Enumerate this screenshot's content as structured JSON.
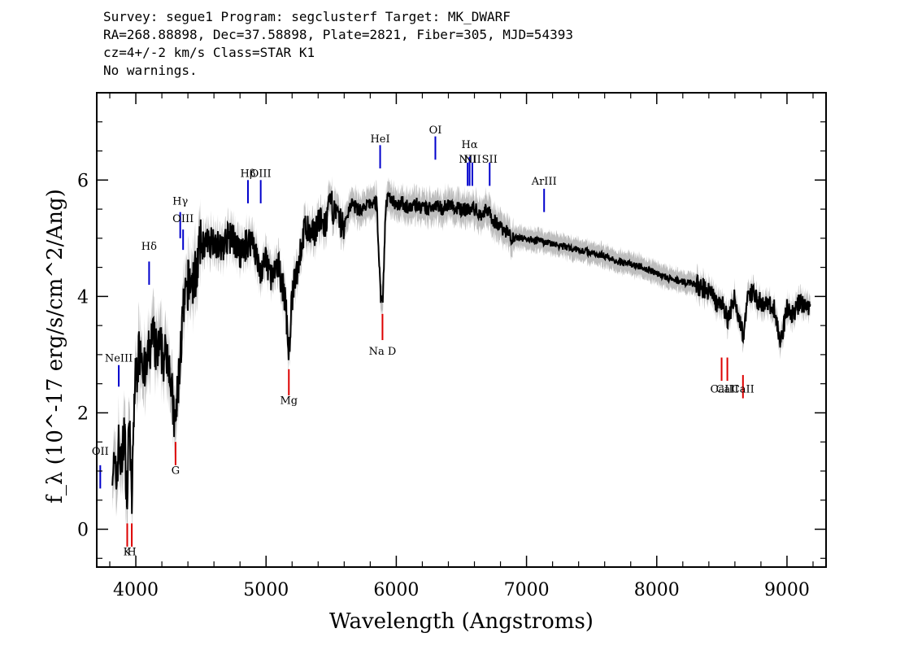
{
  "header": {
    "line1": "Survey: segue1 Program: segclusterf Target: MK_DWARF",
    "line2": "RA=268.88898, Dec=37.58898, Plate=2821, Fiber=305, MJD=54393",
    "line3": "cz=4+/-2 km/s Class=STAR K1",
    "line4": "No warnings."
  },
  "chart_data": {
    "type": "line",
    "xlabel": "Wavelength (Angstroms)",
    "ylabel": "f_λ (10^-17 erg/s/cm^2/Ang)",
    "xlim": [
      3700,
      9300
    ],
    "ylim": [
      -0.65,
      7.5
    ],
    "x_ticks": [
      4000,
      5000,
      6000,
      7000,
      8000,
      9000
    ],
    "y_ticks": [
      0,
      2,
      4,
      6
    ],
    "x_tick_labels": [
      "4000",
      "5000",
      "6000",
      "7000",
      "8000",
      "9000"
    ],
    "y_tick_labels": [
      "0",
      "2",
      "4",
      "6"
    ],
    "grid": false,
    "colors": {
      "spectrum": "#000000",
      "error_band": "#bdbdbd",
      "emission": "#0000cc",
      "absorption": "#dd0000"
    },
    "series": [
      {
        "values": [
          [
            3820,
            1.2
          ],
          [
            3850,
            0.8
          ],
          [
            3870,
            1.5
          ],
          [
            3890,
            1.0
          ],
          [
            3910,
            1.8
          ],
          [
            3935,
            0.4
          ],
          [
            3950,
            2.2
          ],
          [
            3968,
            0.3
          ],
          [
            3990,
            2.4
          ],
          [
            4010,
            2.8
          ],
          [
            4040,
            3.2
          ],
          [
            4070,
            2.6
          ],
          [
            4100,
            3.0
          ],
          [
            4130,
            3.3
          ],
          [
            4160,
            3.0
          ],
          [
            4190,
            3.1
          ],
          [
            4220,
            2.9
          ],
          [
            4250,
            3.1
          ],
          [
            4270,
            2.5
          ],
          [
            4300,
            1.7
          ],
          [
            4330,
            2.6
          ],
          [
            4360,
            3.6
          ],
          [
            4400,
            4.2
          ],
          [
            4450,
            4.3
          ],
          [
            4500,
            4.9
          ],
          [
            4550,
            4.9
          ],
          [
            4600,
            5.0
          ],
          [
            4650,
            4.8
          ],
          [
            4700,
            5.0
          ],
          [
            4750,
            5.0
          ],
          [
            4800,
            4.7
          ],
          [
            4850,
            4.9
          ],
          [
            4900,
            5.0
          ],
          [
            4950,
            4.4
          ],
          [
            5000,
            4.6
          ],
          [
            5050,
            4.3
          ],
          [
            5100,
            4.5
          ],
          [
            5150,
            3.9
          ],
          [
            5175,
            3.0
          ],
          [
            5200,
            4.0
          ],
          [
            5250,
            4.6
          ],
          [
            5300,
            5.2
          ],
          [
            5350,
            5.0
          ],
          [
            5400,
            5.3
          ],
          [
            5450,
            5.2
          ],
          [
            5500,
            5.6
          ],
          [
            5550,
            5.3
          ],
          [
            5600,
            5.2
          ],
          [
            5650,
            5.6
          ],
          [
            5700,
            5.5
          ],
          [
            5750,
            5.5
          ],
          [
            5800,
            5.6
          ],
          [
            5850,
            5.6
          ],
          [
            5880,
            4.0
          ],
          [
            5895,
            3.9
          ],
          [
            5920,
            5.6
          ],
          [
            5950,
            5.7
          ],
          [
            6000,
            5.6
          ],
          [
            6050,
            5.6
          ],
          [
            6100,
            5.5
          ],
          [
            6150,
            5.6
          ],
          [
            6200,
            5.5
          ],
          [
            6250,
            5.5
          ],
          [
            6300,
            5.6
          ],
          [
            6350,
            5.5
          ],
          [
            6400,
            5.6
          ],
          [
            6450,
            5.5
          ],
          [
            6500,
            5.5
          ],
          [
            6550,
            5.5
          ],
          [
            6600,
            5.5
          ],
          [
            6650,
            5.4
          ],
          [
            6700,
            5.5
          ],
          [
            6750,
            5.3
          ],
          [
            6800,
            5.2
          ],
          [
            6850,
            5.1
          ],
          [
            6900,
            5.0
          ],
          [
            7000,
            5.0
          ],
          [
            7100,
            4.95
          ],
          [
            7200,
            4.9
          ],
          [
            7300,
            4.85
          ],
          [
            7400,
            4.8
          ],
          [
            7500,
            4.75
          ],
          [
            7600,
            4.7
          ],
          [
            7700,
            4.6
          ],
          [
            7800,
            4.55
          ],
          [
            7900,
            4.5
          ],
          [
            8000,
            4.4
          ],
          [
            8100,
            4.3
          ],
          [
            8200,
            4.25
          ],
          [
            8300,
            4.2
          ],
          [
            8400,
            4.1
          ],
          [
            8450,
            3.9
          ],
          [
            8500,
            3.9
          ],
          [
            8545,
            3.6
          ],
          [
            8600,
            4.0
          ],
          [
            8662,
            3.3
          ],
          [
            8700,
            4.1
          ],
          [
            8800,
            3.9
          ],
          [
            8900,
            3.8
          ],
          [
            8950,
            3.2
          ],
          [
            9000,
            3.8
          ],
          [
            9050,
            3.7
          ],
          [
            9100,
            3.9
          ],
          [
            9150,
            3.8
          ],
          [
            9180,
            3.8
          ]
        ]
      }
    ],
    "emission_lines": [
      {
        "label": "OII",
        "x": 3727,
        "label_y": 1.28,
        "y_bot": 0.7,
        "y_top": 1.1
      },
      {
        "label": "NeIII",
        "x": 3869,
        "label_y": 2.88,
        "y_bot": 2.45,
        "y_top": 2.82
      },
      {
        "label": "Hδ",
        "x": 4102,
        "label_y": 4.8,
        "y_bot": 4.2,
        "y_top": 4.6
      },
      {
        "label": "Hγ",
        "x": 4341,
        "label_y": 5.58,
        "y_bot": 5.0,
        "y_top": 5.45
      },
      {
        "label": "OIII",
        "x": 4363,
        "label_y": 5.28,
        "y_bot": 4.8,
        "y_top": 5.15
      },
      {
        "label": "Hβ",
        "x": 4861,
        "label_y": 6.05,
        "y_bot": 5.6,
        "y_top": 6.0
      },
      {
        "label": "OIII",
        "x": 4959,
        "label_y": 6.05,
        "y_bot": 5.6,
        "y_top": 6.0
      },
      {
        "label": "HeI",
        "x": 5876,
        "label_y": 6.65,
        "y_bot": 6.2,
        "y_top": 6.6
      },
      {
        "label": "OI",
        "x": 6300,
        "label_y": 6.8,
        "y_bot": 6.35,
        "y_top": 6.75
      },
      {
        "label": "NII",
        "x": 6548,
        "label_y": 6.3,
        "y_bot": 5.9,
        "y_top": 6.3
      },
      {
        "label": "Hα",
        "x": 6563,
        "label_y": 6.55,
        "y_bot": 5.9,
        "y_top": 6.4
      },
      {
        "label": "NII",
        "x": 6584,
        "label_y": 6.3,
        "y_bot": 5.9,
        "y_top": 6.3
      },
      {
        "label": "SII",
        "x": 6717,
        "label_y": 6.3,
        "y_bot": 5.9,
        "y_top": 6.3
      },
      {
        "label": "ArIII",
        "x": 7135,
        "label_y": 5.92,
        "y_bot": 5.45,
        "y_top": 5.85
      }
    ],
    "absorption_lines": [
      {
        "label": "K",
        "x": 3934,
        "label_y": -0.45,
        "y_bot": -0.3,
        "y_top": 0.1
      },
      {
        "label": "H",
        "x": 3969,
        "label_y": -0.45,
        "y_bot": -0.3,
        "y_top": 0.1
      },
      {
        "label": "G",
        "x": 4305,
        "label_y": 0.95,
        "y_bot": 1.1,
        "y_top": 1.5
      },
      {
        "label": "Mg",
        "x": 5175,
        "label_y": 2.15,
        "y_bot": 2.3,
        "y_top": 2.75
      },
      {
        "label": "Na D",
        "x": 5894,
        "label_y": 3.0,
        "y_bot": 3.25,
        "y_top": 3.7
      },
      {
        "label": "CaII",
        "x": 8498,
        "label_y": 2.35,
        "y_bot": 2.55,
        "y_top": 2.95
      },
      {
        "label": "CaII",
        "x": 8542,
        "label_y": 2.35,
        "y_bot": 2.55,
        "y_top": 2.95
      },
      {
        "label": "CaII",
        "x": 8662,
        "label_y": 2.35,
        "y_bot": 2.25,
        "y_top": 2.65
      }
    ]
  }
}
